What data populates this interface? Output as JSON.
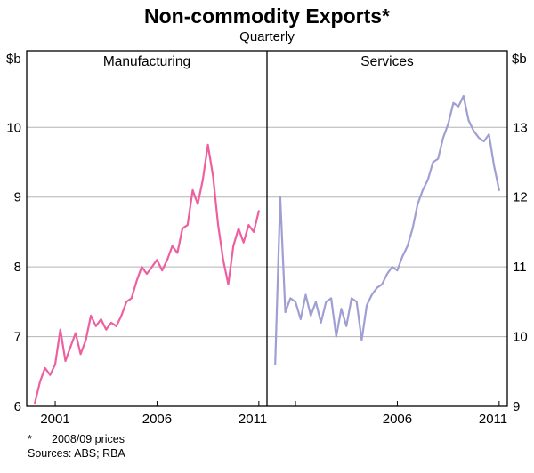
{
  "header": {
    "title": "Non-commodity Exports*",
    "subtitle": "Quarterly"
  },
  "footnotes": {
    "marker": "*",
    "note": "2008/09 prices",
    "sources": "Sources: ABS; RBA"
  },
  "chart_data": {
    "type": "line",
    "layout": "two-panel",
    "grid": "horizontal",
    "frame_color": "#000000",
    "grid_color": "#b3b3b3",
    "xlim": [
      1999.6,
      2011.4
    ],
    "x_start": 2000.0,
    "x_step": 0.25,
    "panels": [
      {
        "label": "Manufacturing",
        "unit": "$b",
        "axis_side": "left",
        "color": "#ee5fa0",
        "ylim": [
          6,
          11.1
        ],
        "yticks": [
          6,
          7,
          8,
          9,
          10
        ],
        "xticks": [
          2001,
          2006,
          2011
        ],
        "xtick_labels": [
          "2001",
          "2006",
          "2011"
        ],
        "values": [
          6.05,
          6.35,
          6.55,
          6.45,
          6.6,
          7.1,
          6.65,
          6.85,
          7.05,
          6.75,
          6.95,
          7.3,
          7.15,
          7.25,
          7.1,
          7.2,
          7.15,
          7.3,
          7.5,
          7.55,
          7.8,
          8.0,
          7.9,
          8.0,
          8.1,
          7.95,
          8.1,
          8.3,
          8.2,
          8.55,
          8.6,
          9.1,
          8.9,
          9.25,
          9.75,
          9.3,
          8.6,
          8.1,
          7.75,
          8.3,
          8.55,
          8.35,
          8.6,
          8.5,
          8.8
        ]
      },
      {
        "label": "Services",
        "unit": "$b",
        "axis_side": "right",
        "color": "#a09fd3",
        "ylim": [
          9,
          14.1
        ],
        "yticks": [
          9,
          10,
          11,
          12,
          13
        ],
        "xticks": [
          2001,
          2006,
          2011
        ],
        "xtick_labels": [
          "",
          "2006",
          "2011"
        ],
        "values": [
          9.6,
          12.0,
          10.35,
          10.55,
          10.5,
          10.25,
          10.6,
          10.3,
          10.5,
          10.2,
          10.5,
          10.55,
          10.0,
          10.4,
          10.15,
          10.55,
          10.5,
          9.95,
          10.45,
          10.6,
          10.7,
          10.75,
          10.9,
          11.0,
          10.95,
          11.15,
          11.3,
          11.55,
          11.9,
          12.1,
          12.25,
          12.5,
          12.55,
          12.85,
          13.05,
          13.35,
          13.3,
          13.45,
          13.1,
          12.95,
          12.85,
          12.8,
          12.9,
          12.45,
          12.1
        ]
      }
    ]
  }
}
